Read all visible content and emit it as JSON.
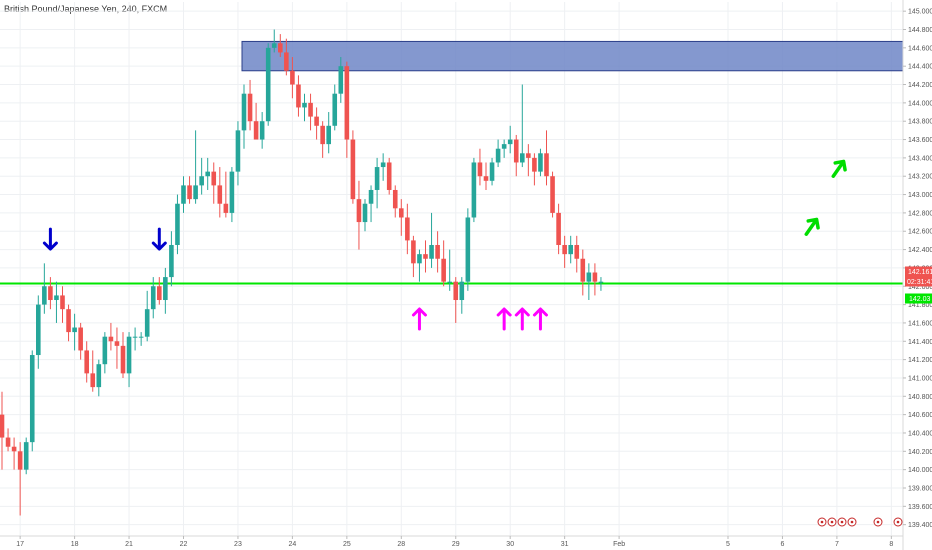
{
  "title": "British Pound/Japanese Yen, 240, FXCM",
  "chart_data": {
    "type": "candlestick",
    "title": "British Pound/Japanese Yen, 240, FXCM",
    "symbol": "GBPJPY",
    "interval": "240",
    "source": "FXCM",
    "ylim": [
      139.32,
      145.1
    ],
    "y_ticks": [
      "145.000",
      "144.800",
      "144.600",
      "144.400",
      "144.200",
      "144.000",
      "143.800",
      "143.600",
      "143.400",
      "143.200",
      "143.000",
      "142.800",
      "142.600",
      "142.400",
      "142.200",
      "142.000",
      "141.800",
      "141.600",
      "141.400",
      "141.200",
      "141.000",
      "140.800",
      "140.600",
      "140.400",
      "140.200",
      "140.000",
      "139.800",
      "139.600",
      "139.400"
    ],
    "x_ticks": [
      "17",
      "18",
      "21",
      "22",
      "23",
      "24",
      "25",
      "28",
      "29",
      "30",
      "31",
      "Feb",
      "5",
      "6",
      "7",
      "8"
    ],
    "x_tick_slots": [
      3,
      12,
      21,
      30,
      39,
      48,
      57,
      66,
      75,
      84,
      93,
      102,
      120,
      129,
      138,
      147
    ],
    "colors": {
      "up": "#26a69a",
      "down": "#ef5350",
      "support": "#00e600",
      "zone": "#6f86c7",
      "blue_arrow": "#0000cc",
      "magenta_arrow": "#ff00ff",
      "green_arrow": "#00dd00"
    },
    "candles": [
      [
        140.6,
        140.85,
        140.0,
        140.35
      ],
      [
        140.35,
        140.45,
        140.2,
        140.25
      ],
      [
        140.25,
        140.35,
        140.0,
        140.2
      ],
      [
        140.2,
        140.3,
        139.5,
        140.0
      ],
      [
        140.0,
        140.35,
        139.95,
        140.3
      ],
      [
        140.3,
        141.3,
        140.2,
        141.25
      ],
      [
        141.25,
        141.9,
        141.1,
        141.8
      ],
      [
        141.8,
        142.25,
        141.7,
        142.0
      ],
      [
        142.0,
        142.1,
        141.75,
        141.85
      ],
      [
        141.85,
        142.05,
        141.6,
        141.9
      ],
      [
        141.9,
        142.0,
        141.6,
        141.75
      ],
      [
        141.75,
        141.8,
        141.4,
        141.5
      ],
      [
        141.5,
        141.7,
        141.3,
        141.55
      ],
      [
        141.55,
        141.6,
        141.2,
        141.3
      ],
      [
        141.3,
        141.4,
        140.95,
        141.05
      ],
      [
        141.05,
        141.3,
        140.85,
        140.9
      ],
      [
        140.9,
        141.2,
        140.8,
        141.15
      ],
      [
        141.15,
        141.5,
        141.05,
        141.45
      ],
      [
        141.45,
        141.6,
        141.3,
        141.4
      ],
      [
        141.4,
        141.55,
        141.1,
        141.35
      ],
      [
        141.35,
        141.5,
        141.0,
        141.05
      ],
      [
        141.05,
        141.5,
        140.9,
        141.45
      ],
      [
        141.45,
        141.55,
        141.3,
        141.45
      ],
      [
        141.45,
        141.5,
        141.35,
        141.45
      ],
      [
        141.45,
        141.95,
        141.4,
        141.75
      ],
      [
        141.75,
        142.1,
        141.65,
        142.0
      ],
      [
        142.0,
        142.1,
        141.8,
        141.85
      ],
      [
        141.85,
        142.2,
        141.7,
        142.1
      ],
      [
        142.1,
        142.6,
        142.0,
        142.45
      ],
      [
        142.45,
        143.0,
        142.35,
        142.9
      ],
      [
        142.9,
        143.2,
        142.8,
        143.1
      ],
      [
        143.1,
        143.2,
        142.9,
        142.95
      ],
      [
        142.95,
        143.7,
        142.9,
        143.1
      ],
      [
        143.1,
        143.4,
        143.0,
        143.2
      ],
      [
        143.2,
        143.4,
        143.05,
        143.25
      ],
      [
        143.25,
        143.35,
        142.9,
        143.1
      ],
      [
        143.1,
        143.3,
        142.75,
        142.9
      ],
      [
        142.9,
        143.25,
        142.75,
        142.8
      ],
      [
        142.8,
        143.3,
        142.7,
        143.25
      ],
      [
        143.25,
        143.8,
        143.1,
        143.7
      ],
      [
        143.7,
        144.2,
        143.5,
        144.1
      ],
      [
        144.1,
        144.25,
        143.7,
        143.8
      ],
      [
        143.8,
        144.0,
        143.65,
        143.6
      ],
      [
        143.6,
        143.9,
        143.5,
        143.8
      ],
      [
        143.8,
        144.65,
        143.75,
        144.6
      ],
      [
        144.6,
        144.8,
        144.55,
        144.65
      ],
      [
        144.65,
        144.75,
        144.5,
        144.55
      ],
      [
        144.55,
        144.7,
        144.3,
        144.35
      ],
      [
        144.35,
        144.5,
        144.05,
        144.2
      ],
      [
        144.2,
        144.3,
        143.85,
        143.95
      ],
      [
        143.95,
        144.1,
        143.8,
        144.0
      ],
      [
        144.0,
        144.1,
        143.7,
        143.85
      ],
      [
        143.85,
        143.95,
        143.6,
        143.75
      ],
      [
        143.75,
        143.8,
        143.4,
        143.55
      ],
      [
        143.55,
        143.9,
        143.45,
        143.75
      ],
      [
        143.75,
        144.2,
        143.7,
        144.1
      ],
      [
        144.1,
        144.5,
        144.0,
        144.4
      ],
      [
        144.4,
        144.45,
        143.4,
        143.6
      ],
      [
        143.6,
        143.7,
        142.9,
        142.95
      ],
      [
        142.95,
        143.15,
        142.4,
        142.7
      ],
      [
        142.7,
        142.95,
        142.6,
        142.9
      ],
      [
        142.9,
        143.1,
        142.7,
        143.05
      ],
      [
        143.05,
        143.4,
        142.85,
        143.3
      ],
      [
        143.3,
        143.45,
        143.15,
        143.35
      ],
      [
        143.35,
        143.4,
        143.0,
        143.05
      ],
      [
        143.05,
        143.1,
        142.75,
        142.85
      ],
      [
        142.85,
        142.95,
        142.55,
        142.75
      ],
      [
        142.75,
        142.9,
        142.35,
        142.5
      ],
      [
        142.5,
        142.55,
        142.1,
        142.25
      ],
      [
        142.25,
        142.4,
        142.05,
        142.35
      ],
      [
        142.35,
        142.5,
        142.15,
        142.3
      ],
      [
        142.3,
        142.8,
        142.2,
        142.45
      ],
      [
        142.45,
        142.6,
        142.15,
        142.3
      ],
      [
        142.3,
        142.5,
        142.0,
        142.05
      ],
      [
        142.05,
        142.4,
        141.95,
        142.05
      ],
      [
        142.05,
        142.1,
        141.6,
        141.85
      ],
      [
        141.85,
        142.1,
        141.7,
        142.05
      ],
      [
        142.05,
        142.85,
        141.95,
        142.75
      ],
      [
        142.75,
        143.4,
        142.7,
        143.35
      ],
      [
        143.35,
        143.5,
        143.1,
        143.2
      ],
      [
        143.2,
        143.35,
        143.05,
        143.15
      ],
      [
        143.15,
        143.4,
        143.1,
        143.35
      ],
      [
        143.35,
        143.6,
        143.3,
        143.5
      ],
      [
        143.5,
        143.6,
        143.4,
        143.55
      ],
      [
        143.55,
        143.75,
        143.45,
        143.6
      ],
      [
        143.6,
        143.65,
        143.2,
        143.35
      ],
      [
        143.35,
        144.2,
        143.3,
        143.45
      ],
      [
        143.45,
        143.55,
        143.2,
        143.4
      ],
      [
        143.4,
        143.45,
        143.1,
        143.25
      ],
      [
        143.25,
        143.5,
        143.2,
        143.45
      ],
      [
        143.45,
        143.7,
        143.1,
        143.2
      ],
      [
        143.2,
        143.25,
        142.75,
        142.8
      ],
      [
        142.8,
        142.9,
        142.35,
        142.45
      ],
      [
        142.45,
        142.55,
        142.2,
        142.35
      ],
      [
        142.35,
        142.55,
        142.25,
        142.45
      ],
      [
        142.45,
        142.55,
        142.15,
        142.3
      ],
      [
        142.3,
        142.4,
        141.9,
        142.05
      ],
      [
        142.05,
        142.25,
        141.85,
        142.15
      ],
      [
        142.15,
        142.25,
        141.9,
        142.05
      ],
      [
        142.05,
        142.1,
        141.95,
        142.05
      ]
    ],
    "support_line": 142.03,
    "resistance_zone": [
      144.35,
      144.67
    ],
    "zone_start_index": 40,
    "current_price": "142.161",
    "countdown": "02:31:41",
    "support_label": "142.03",
    "blue_arrows": [
      {
        "index": 8,
        "direction": "down"
      },
      {
        "index": 26,
        "direction": "down"
      }
    ],
    "magenta_arrows": [
      {
        "index": 69,
        "direction": "up"
      },
      {
        "index": 83,
        "direction": "up"
      },
      {
        "index": 86,
        "direction": "up"
      },
      {
        "index": 89,
        "direction": "up"
      }
    ],
    "green_arrows": [
      {
        "index": 90,
        "direction": "up-right"
      },
      {
        "index": 93,
        "direction": "up-right"
      }
    ]
  }
}
